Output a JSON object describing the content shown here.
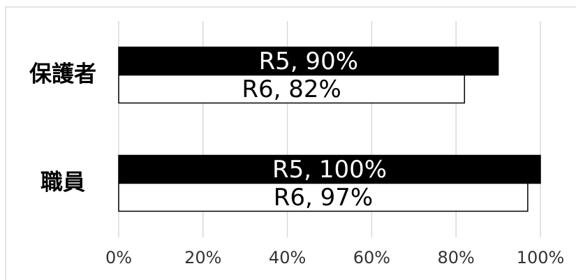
{
  "chart_data": {
    "type": "bar",
    "orientation": "horizontal",
    "categories": [
      "保護者",
      "職員"
    ],
    "series": [
      {
        "name": "R5",
        "color": "#000000",
        "values": [
          90,
          100
        ],
        "value_labels": [
          "R5, 90%",
          "R5, 100%"
        ]
      },
      {
        "name": "R6",
        "color": "#ffffff",
        "values": [
          82,
          97
        ],
        "value_labels": [
          "R6, 82%",
          "R6, 97%"
        ]
      }
    ],
    "xlim": [
      0,
      100
    ],
    "xticks": [
      {
        "value": 0,
        "label": "0%"
      },
      {
        "value": 20,
        "label": "20%"
      },
      {
        "value": 40,
        "label": "40%"
      },
      {
        "value": 60,
        "label": "60%"
      },
      {
        "value": 80,
        "label": "80%"
      },
      {
        "value": 100,
        "label": "100%"
      }
    ],
    "grid": true
  }
}
